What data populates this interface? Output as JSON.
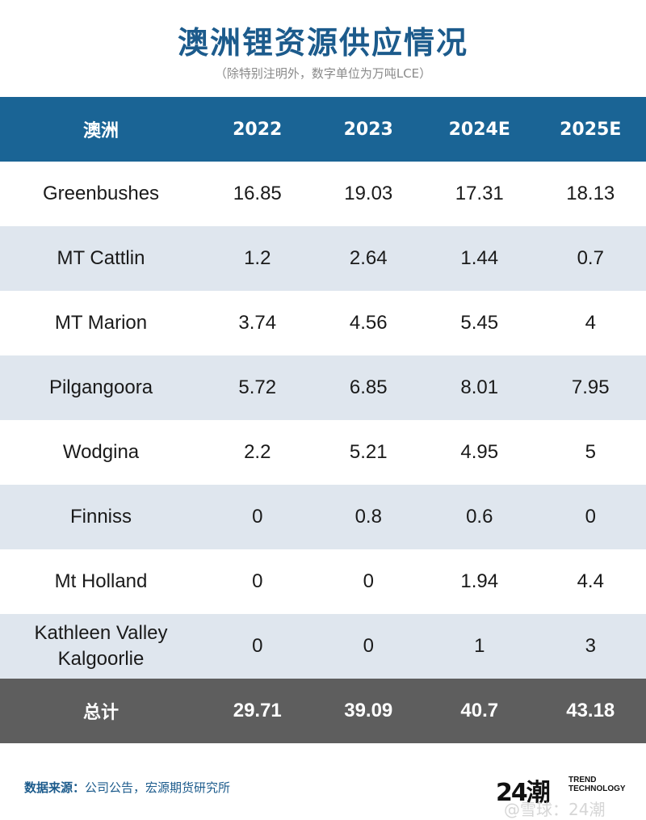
{
  "title": "澳洲锂资源供应情况",
  "subtitle": "（除特别注明外，数字单位为万吨LCE）",
  "table": {
    "headers": [
      "澳洲",
      "2022",
      "2023",
      "2024E",
      "2025E"
    ],
    "rows": [
      [
        "Greenbushes",
        "16.85",
        "19.03",
        "17.31",
        "18.13"
      ],
      [
        "MT Cattlin",
        "1.2",
        "2.64",
        "1.44",
        "0.7"
      ],
      [
        "MT Marion",
        "3.74",
        "4.56",
        "5.45",
        "4"
      ],
      [
        "Pilgangoora",
        "5.72",
        "6.85",
        "8.01",
        "7.95"
      ],
      [
        "Wodgina",
        "2.2",
        "5.21",
        "4.95",
        "5"
      ],
      [
        "Finniss",
        "0",
        "0.8",
        "0.6",
        "0"
      ],
      [
        "Mt Holland",
        "0",
        "0",
        "1.94",
        "4.4"
      ],
      [
        "Kathleen Valley\nKalgoorlie",
        "0",
        "0",
        "1",
        "3"
      ]
    ],
    "total": [
      "总计",
      "29.71",
      "39.09",
      "40.7",
      "43.18"
    ]
  },
  "footer": {
    "source_label": "数据来源：",
    "source_text": "公司公告，宏源期货研究所",
    "logo_mark": "24潮",
    "logo_line1": "TREND",
    "logo_line2": "TECHNOLOGY",
    "watermark": "@雪球：24潮"
  },
  "colors": {
    "title": "#1c5b8c",
    "header_bg": "#1a6495",
    "stripe_bg": "#dfe6ee",
    "total_bg": "#5e5e5e"
  }
}
